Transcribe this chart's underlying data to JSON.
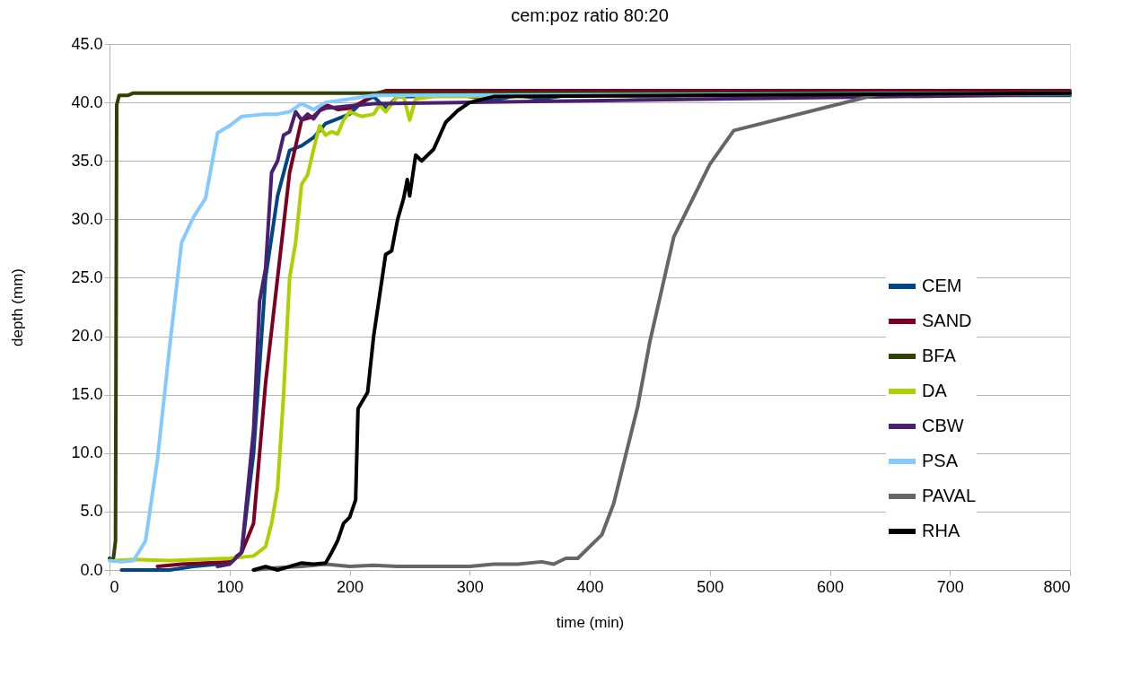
{
  "chart_data": {
    "type": "line",
    "title": "cem:poz ratio 80:20",
    "xlabel": "time (min)",
    "ylabel": "depth (mm)",
    "xlim": [
      0,
      800
    ],
    "xticks": [
      0,
      100,
      200,
      300,
      400,
      500,
      600,
      700,
      800
    ],
    "ylim": [
      0,
      45
    ],
    "yticks": [
      {
        "value": 0,
        "label": "0.0"
      },
      {
        "value": 5,
        "label": "5.0"
      },
      {
        "value": 10,
        "label": "10.0"
      },
      {
        "value": 15,
        "label": "15.0"
      },
      {
        "value": 20,
        "label": "20.0"
      },
      {
        "value": 25,
        "label": "25.0"
      },
      {
        "value": 30,
        "label": "30.0"
      },
      {
        "value": 35,
        "label": "35.0"
      },
      {
        "value": 40,
        "label": "40.0"
      },
      {
        "value": 45,
        "label": "45.0"
      }
    ],
    "grid": "y",
    "legend": "right",
    "marker": "none",
    "line_style": "solid",
    "series": [
      {
        "name": "CEM",
        "color": "#004586",
        "x": [
          10,
          50,
          70,
          100,
          110,
          120,
          130,
          140,
          150,
          160,
          170,
          180,
          200,
          210,
          220,
          230,
          240,
          260,
          280,
          300,
          320,
          340,
          360,
          380,
          400,
          420,
          440,
          460,
          480,
          800
        ],
        "values": [
          0,
          0,
          0.3,
          0.6,
          1.5,
          10,
          25,
          32,
          35.9,
          36.3,
          37,
          38.2,
          39,
          40,
          40.5,
          39.5,
          40.5,
          40.5,
          40.9,
          40.5,
          40.2,
          40.6,
          40.3,
          40.6,
          40.8,
          40.6,
          40.5,
          40.5,
          40.6,
          40.6
        ]
      },
      {
        "name": "SAND",
        "color": "#7e0021",
        "x": [
          40,
          60,
          100,
          110,
          120,
          130,
          140,
          150,
          160,
          170,
          180,
          190,
          200,
          210,
          220,
          230,
          800
        ],
        "values": [
          0.3,
          0.5,
          0.7,
          1.5,
          4,
          16,
          25,
          34,
          38.5,
          38.8,
          39.8,
          39.4,
          39.5,
          40,
          40.7,
          41,
          41
        ]
      },
      {
        "name": "BFA",
        "color": "#314004",
        "x": [
          0,
          3,
          5,
          6,
          8,
          15,
          20,
          800
        ],
        "values": [
          1.0,
          0.8,
          2.5,
          39.8,
          40.6,
          40.6,
          40.8,
          40.8
        ]
      },
      {
        "name": "DA",
        "color": "#aecf00",
        "x": [
          5,
          20,
          50,
          100,
          120,
          130,
          135,
          140,
          145,
          150,
          155,
          160,
          165,
          170,
          175,
          180,
          185,
          190,
          195,
          200,
          210,
          220,
          225,
          230,
          240,
          245,
          250,
          255,
          270,
          800
        ],
        "values": [
          0.8,
          0.9,
          0.8,
          1.0,
          1.2,
          2,
          4,
          7,
          15,
          25,
          28,
          33,
          33.8,
          36,
          38,
          37.2,
          37.5,
          37.3,
          38.5,
          39.2,
          38.8,
          39,
          39.8,
          39.2,
          40.5,
          40.5,
          38.5,
          40.3,
          40.5,
          40.7
        ]
      },
      {
        "name": "CBW",
        "color": "#4b1f6f",
        "x": [
          90,
          100,
          110,
          120,
          125,
          130,
          135,
          140,
          145,
          150,
          155,
          160,
          165,
          170,
          175,
          180,
          200,
          220,
          300,
          800
        ],
        "values": [
          0.3,
          0.5,
          1.5,
          12,
          23,
          25.8,
          34,
          35,
          37.2,
          37.5,
          39.2,
          38.5,
          39,
          38.6,
          39.3,
          39.5,
          39.7,
          39.9,
          40,
          40.7
        ]
      },
      {
        "name": "PSA",
        "color": "#83caff",
        "x": [
          0,
          10,
          20,
          30,
          40,
          50,
          60,
          70,
          80,
          90,
          100,
          110,
          130,
          140,
          150,
          160,
          170,
          180,
          200,
          220,
          800
        ],
        "values": [
          0.8,
          0.7,
          0.8,
          2.5,
          9.5,
          19,
          28,
          30.2,
          31.8,
          37.4,
          38,
          38.8,
          39,
          39,
          39.2,
          39.9,
          39.4,
          40,
          40.3,
          40.6,
          40.8
        ]
      },
      {
        "name": "PAVAL",
        "color": "#666666",
        "x": [
          120,
          140,
          160,
          180,
          200,
          220,
          240,
          260,
          280,
          300,
          320,
          340,
          360,
          370,
          380,
          390,
          410,
          420,
          440,
          450,
          470,
          500,
          520,
          640,
          800
        ],
        "values": [
          0,
          0.2,
          0.3,
          0.5,
          0.3,
          0.4,
          0.3,
          0.3,
          0.3,
          0.3,
          0.5,
          0.5,
          0.7,
          0.5,
          1,
          1,
          3,
          5.7,
          14,
          19.5,
          28.5,
          34.7,
          37.6,
          40.7,
          40.7
        ]
      },
      {
        "name": "RHA",
        "color": "#000000",
        "x": [
          120,
          130,
          140,
          150,
          160,
          170,
          180,
          185,
          190,
          195,
          200,
          205,
          207,
          215,
          220,
          225,
          230,
          235,
          240,
          245,
          248,
          250,
          255,
          260,
          270,
          280,
          290,
          300,
          320,
          800
        ],
        "values": [
          0,
          0.3,
          0,
          0.3,
          0.6,
          0.5,
          0.6,
          1.5,
          2.5,
          4,
          4.5,
          6,
          13.8,
          15.2,
          20,
          23.5,
          27,
          27.3,
          30,
          31.8,
          33.4,
          32,
          35.5,
          35,
          36,
          38.3,
          39.3,
          40,
          40.5,
          40.8
        ]
      }
    ]
  }
}
